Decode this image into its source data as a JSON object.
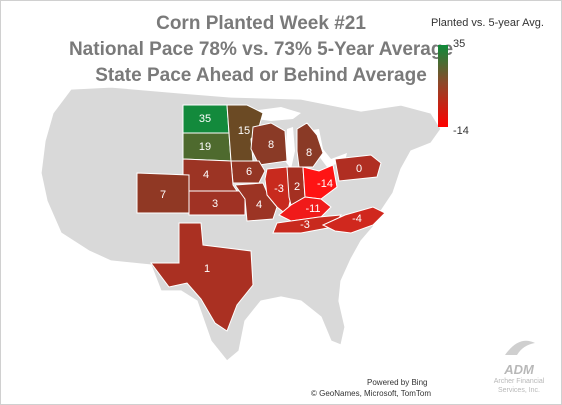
{
  "title": {
    "line1": "Corn Planted Week #21",
    "line2": "National Pace 78% vs. 73% 5-Year Average",
    "line3": "State Pace Ahead or Behind Average"
  },
  "legend": {
    "title": "Planted vs. 5-year Avg.",
    "max": "35",
    "min": "-14",
    "color_max": "#0f8a3a",
    "color_min": "#ff0000"
  },
  "states": [
    {
      "id": "ND",
      "value": "35",
      "color": "#138a3c"
    },
    {
      "id": "MN",
      "value": "15",
      "color": "#6b4a24"
    },
    {
      "id": "SD",
      "value": "19",
      "color": "#4e6a2e"
    },
    {
      "id": "WI",
      "value": "8",
      "color": "#8a3a26"
    },
    {
      "id": "MI",
      "value": "8",
      "color": "#8a3a26"
    },
    {
      "id": "IA",
      "value": "6",
      "color": "#943624"
    },
    {
      "id": "NE",
      "value": "4",
      "color": "#9c3424"
    },
    {
      "id": "CO",
      "value": "7",
      "color": "#903824"
    },
    {
      "id": "KS",
      "value": "3",
      "color": "#a03224"
    },
    {
      "id": "MO",
      "value": "4",
      "color": "#9c3424"
    },
    {
      "id": "IL",
      "value": "-3",
      "color": "#c82a1e"
    },
    {
      "id": "IN",
      "value": "2",
      "color": "#a43022"
    },
    {
      "id": "OH",
      "value": "-14",
      "color": "#ff1414"
    },
    {
      "id": "KY",
      "value": "-11",
      "color": "#f01a1a"
    },
    {
      "id": "TN",
      "value": "-3",
      "color": "#c82a1e"
    },
    {
      "id": "NC",
      "value": "-4",
      "color": "#d0281e"
    },
    {
      "id": "PA",
      "value": "0",
      "color": "#b02e22"
    },
    {
      "id": "TX",
      "value": "1",
      "color": "#aa3022"
    }
  ],
  "footer": {
    "powered": "Powered by Bing",
    "attribution": "© GeoNames, Microsoft, TomTom",
    "logo_word": "ADM",
    "logo_sub1": "Archer Financial",
    "logo_sub2": "Services, Inc."
  }
}
